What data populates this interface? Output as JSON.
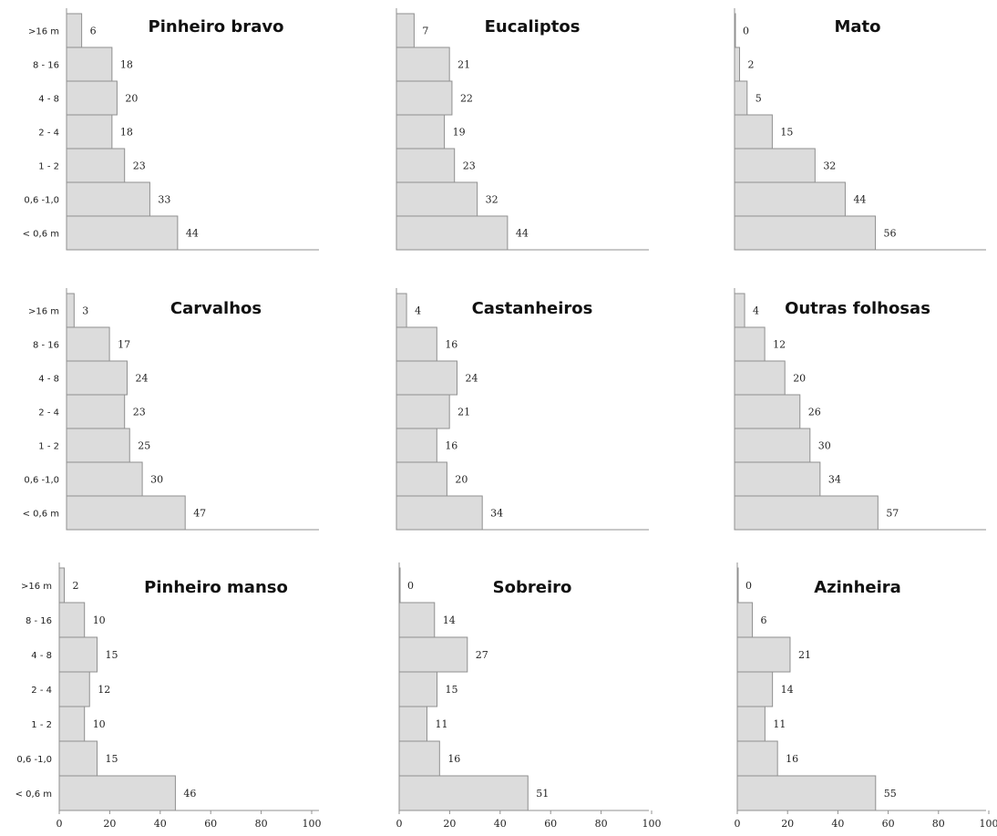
{
  "chart_data": [
    {
      "type": "bar",
      "orientation": "horizontal",
      "title": "Pinheiro bravo",
      "categories": [
        ">16 m",
        "8 - 16",
        "4 - 8",
        "2 - 4",
        "1 - 2",
        "0,6 -1,0",
        "< 0,6 m"
      ],
      "values": [
        6,
        18,
        20,
        18,
        23,
        33,
        44
      ],
      "xlim": [
        0,
        100
      ]
    },
    {
      "type": "bar",
      "orientation": "horizontal",
      "title": "Eucaliptos",
      "categories": [
        ">16 m",
        "8 - 16",
        "4 - 8",
        "2 - 4",
        "1 - 2",
        "0,6 -1,0",
        "< 0,6 m"
      ],
      "values": [
        7,
        21,
        22,
        19,
        23,
        32,
        44
      ],
      "xlim": [
        0,
        100
      ]
    },
    {
      "type": "bar",
      "orientation": "horizontal",
      "title": "Mato",
      "categories": [
        ">16 m",
        "8 - 16",
        "4 - 8",
        "2 - 4",
        "1 - 2",
        "0,6 -1,0",
        "< 0,6 m"
      ],
      "values": [
        0,
        2,
        5,
        15,
        32,
        44,
        56
      ],
      "xlim": [
        0,
        100
      ]
    },
    {
      "type": "bar",
      "orientation": "horizontal",
      "title": "Carvalhos",
      "categories": [
        ">16 m",
        "8 - 16",
        "4 - 8",
        "2 - 4",
        "1 - 2",
        "0,6 -1,0",
        "< 0,6 m"
      ],
      "values": [
        3,
        17,
        24,
        23,
        25,
        30,
        47
      ],
      "xlim": [
        0,
        100
      ]
    },
    {
      "type": "bar",
      "orientation": "horizontal",
      "title": "Castanheiros",
      "categories": [
        ">16 m",
        "8 - 16",
        "4 - 8",
        "2 - 4",
        "1 - 2",
        "0,6 -1,0",
        "< 0,6 m"
      ],
      "values": [
        4,
        16,
        24,
        21,
        16,
        20,
        34
      ],
      "xlim": [
        0,
        100
      ]
    },
    {
      "type": "bar",
      "orientation": "horizontal",
      "title": "Outras folhosas",
      "categories": [
        ">16 m",
        "8 - 16",
        "4 - 8",
        "2 - 4",
        "1 - 2",
        "0,6 -1,0",
        "< 0,6 m"
      ],
      "values": [
        4,
        12,
        20,
        26,
        30,
        34,
        57
      ],
      "xlim": [
        0,
        100
      ]
    },
    {
      "type": "bar",
      "orientation": "horizontal",
      "title": "Pinheiro manso",
      "categories": [
        ">16 m",
        "8 - 16",
        "4 - 8",
        "2 - 4",
        "1 - 2",
        "0,6 -1,0",
        "< 0,6 m"
      ],
      "values": [
        2,
        10,
        15,
        12,
        10,
        15,
        46
      ],
      "xlim": [
        0,
        100
      ],
      "xticks": [
        0,
        20,
        40,
        60,
        80,
        100
      ]
    },
    {
      "type": "bar",
      "orientation": "horizontal",
      "title": "Sobreiro",
      "categories": [
        ">16 m",
        "8 - 16",
        "4 - 8",
        "2 - 4",
        "1 - 2",
        "0,6 -1,0",
        "< 0,6 m"
      ],
      "values": [
        0,
        14,
        27,
        15,
        11,
        16,
        51
      ],
      "xlim": [
        0,
        100
      ],
      "xticks": [
        0,
        20,
        40,
        60,
        80,
        100
      ]
    },
    {
      "type": "bar",
      "orientation": "horizontal",
      "title": "Azinheira",
      "categories": [
        ">16 m",
        "8 - 16",
        "4 - 8",
        "2 - 4",
        "1 - 2",
        "0,6 -1,0",
        "< 0,6 m"
      ],
      "values": [
        0,
        6,
        21,
        14,
        11,
        16,
        55
      ],
      "xlim": [
        0,
        100
      ],
      "xticks": [
        0,
        20,
        40,
        60,
        80,
        100
      ]
    }
  ]
}
